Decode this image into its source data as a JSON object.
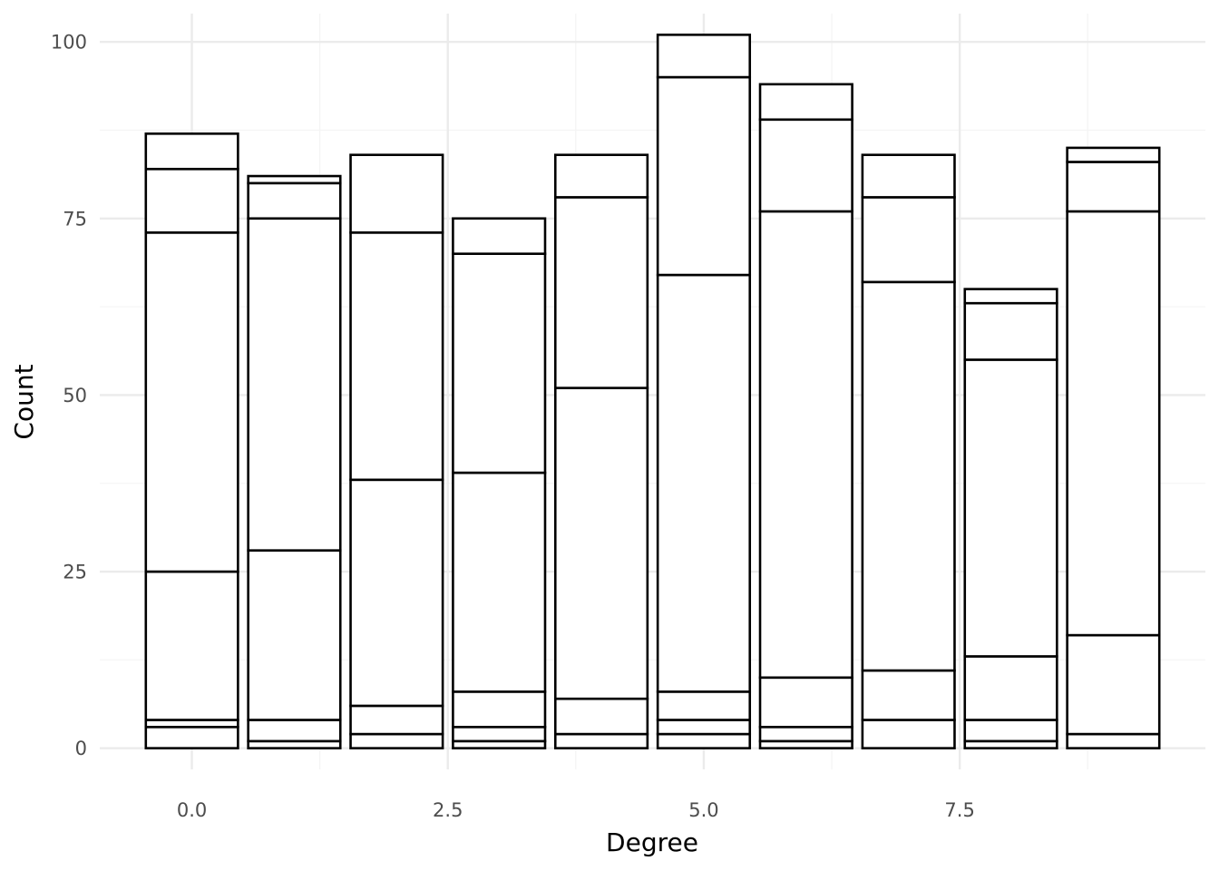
{
  "chart_data": {
    "type": "bar",
    "stacked": true,
    "xlabel": "Degree",
    "ylabel": "Count",
    "xlim": [
      -0.9,
      9.9
    ],
    "ylim": [
      -3,
      104
    ],
    "x_ticks": [
      0.0,
      2.5,
      5.0,
      7.5
    ],
    "x_tick_labels": [
      "0.0",
      "2.5",
      "5.0",
      "7.5"
    ],
    "y_ticks": [
      0,
      25,
      50,
      75,
      100
    ],
    "y_tick_labels": [
      "0",
      "25",
      "50",
      "75",
      "100"
    ],
    "grid": true,
    "bar_width": 0.9,
    "bar_fill": "#ffffff",
    "bar_stroke": "#000000",
    "bars": [
      {
        "x": 0,
        "boundaries": [
          0,
          3,
          4,
          25,
          73,
          82,
          87
        ]
      },
      {
        "x": 1,
        "boundaries": [
          0,
          1,
          4,
          28,
          75,
          80,
          81
        ]
      },
      {
        "x": 2,
        "boundaries": [
          0,
          2,
          6,
          38,
          73,
          84
        ]
      },
      {
        "x": 3,
        "boundaries": [
          0,
          1,
          3,
          8,
          39,
          70,
          75
        ]
      },
      {
        "x": 4,
        "boundaries": [
          0,
          2,
          7,
          51,
          78,
          84
        ]
      },
      {
        "x": 5,
        "boundaries": [
          0,
          2,
          4,
          8,
          67,
          95,
          101
        ]
      },
      {
        "x": 6,
        "boundaries": [
          0,
          1,
          3,
          10,
          76,
          89,
          94
        ]
      },
      {
        "x": 7,
        "boundaries": [
          0,
          4,
          11,
          66,
          78,
          84
        ]
      },
      {
        "x": 8,
        "boundaries": [
          0,
          1,
          4,
          13,
          55,
          63,
          65
        ]
      },
      {
        "x": 9,
        "boundaries": [
          0,
          2,
          16,
          76,
          83,
          85
        ]
      }
    ]
  }
}
